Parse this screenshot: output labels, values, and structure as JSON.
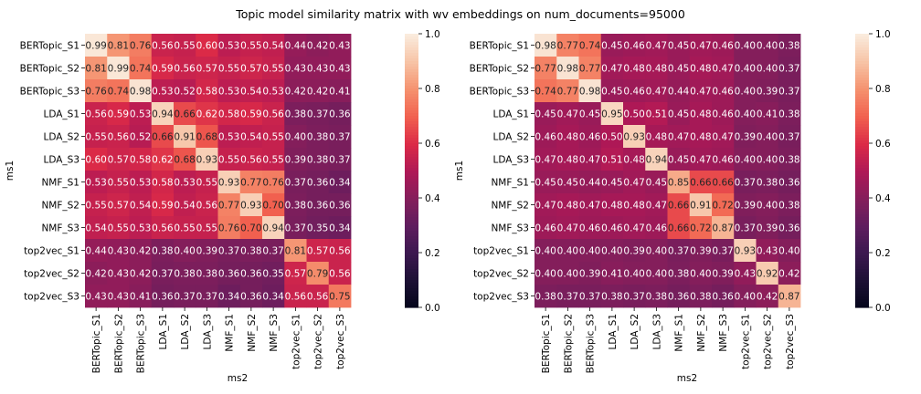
{
  "title": "Topic model similarity matrix with wv embeddings on  num_documents=95000",
  "chart_data": {
    "type": "heatmap",
    "colormap": "rocket",
    "vmin": 0,
    "vmax": 1,
    "colorbar_ticks": [
      "0.0",
      "0.2",
      "0.4",
      "0.6",
      "0.8",
      "1.0"
    ],
    "labels": [
      "BERTopic_S1",
      "BERTopic_S2",
      "BERTopic_S3",
      "LDA_S1",
      "LDA_S2",
      "LDA_S3",
      "NMF_S1",
      "NMF_S2",
      "NMF_S3",
      "top2vec_S1",
      "top2vec_S2",
      "top2vec_S3"
    ],
    "panels": [
      {
        "xlabel": "ms2",
        "ylabel": "ms1",
        "values": [
          [
            0.99,
            0.81,
            0.76,
            0.56,
            0.55,
            0.6,
            0.53,
            0.55,
            0.54,
            0.44,
            0.42,
            0.43
          ],
          [
            0.81,
            0.99,
            0.74,
            0.59,
            0.56,
            0.57,
            0.55,
            0.57,
            0.55,
            0.43,
            0.43,
            0.43
          ],
          [
            0.76,
            0.74,
            0.98,
            0.53,
            0.52,
            0.58,
            0.53,
            0.54,
            0.53,
            0.42,
            0.42,
            0.41
          ],
          [
            0.56,
            0.59,
            0.53,
            0.94,
            0.66,
            0.62,
            0.58,
            0.59,
            0.56,
            0.38,
            0.37,
            0.36
          ],
          [
            0.55,
            0.56,
            0.52,
            0.66,
            0.91,
            0.68,
            0.53,
            0.54,
            0.55,
            0.4,
            0.38,
            0.37
          ],
          [
            0.6,
            0.57,
            0.58,
            0.62,
            0.68,
            0.93,
            0.55,
            0.56,
            0.55,
            0.39,
            0.38,
            0.37
          ],
          [
            0.53,
            0.55,
            0.53,
            0.58,
            0.53,
            0.55,
            0.93,
            0.77,
            0.76,
            0.37,
            0.36,
            0.34
          ],
          [
            0.55,
            0.57,
            0.54,
            0.59,
            0.54,
            0.56,
            0.77,
            0.93,
            0.7,
            0.38,
            0.36,
            0.36
          ],
          [
            0.54,
            0.55,
            0.53,
            0.56,
            0.55,
            0.55,
            0.76,
            0.7,
            0.94,
            0.37,
            0.35,
            0.34
          ],
          [
            0.44,
            0.43,
            0.42,
            0.38,
            0.4,
            0.39,
            0.37,
            0.38,
            0.37,
            0.81,
            0.57,
            0.56
          ],
          [
            0.42,
            0.43,
            0.42,
            0.37,
            0.38,
            0.38,
            0.36,
            0.36,
            0.35,
            0.57,
            0.79,
            0.56
          ],
          [
            0.43,
            0.43,
            0.41,
            0.36,
            0.37,
            0.37,
            0.34,
            0.36,
            0.34,
            0.56,
            0.56,
            0.75
          ]
        ]
      },
      {
        "xlabel": "ms2",
        "ylabel": "ms1",
        "values": [
          [
            0.98,
            0.77,
            0.74,
            0.45,
            0.46,
            0.47,
            0.45,
            0.47,
            0.46,
            0.4,
            0.4,
            0.38
          ],
          [
            0.77,
            0.98,
            0.77,
            0.47,
            0.48,
            0.48,
            0.45,
            0.48,
            0.47,
            0.4,
            0.4,
            0.37
          ],
          [
            0.74,
            0.77,
            0.98,
            0.45,
            0.46,
            0.47,
            0.44,
            0.47,
            0.46,
            0.4,
            0.39,
            0.37
          ],
          [
            0.45,
            0.47,
            0.45,
            0.95,
            0.5,
            0.51,
            0.45,
            0.48,
            0.46,
            0.4,
            0.41,
            0.38
          ],
          [
            0.46,
            0.48,
            0.46,
            0.5,
            0.93,
            0.48,
            0.47,
            0.48,
            0.47,
            0.39,
            0.4,
            0.37
          ],
          [
            0.47,
            0.48,
            0.47,
            0.51,
            0.48,
            0.94,
            0.45,
            0.47,
            0.46,
            0.4,
            0.4,
            0.38
          ],
          [
            0.45,
            0.45,
            0.44,
            0.45,
            0.47,
            0.45,
            0.85,
            0.66,
            0.66,
            0.37,
            0.38,
            0.36
          ],
          [
            0.47,
            0.48,
            0.47,
            0.48,
            0.48,
            0.47,
            0.66,
            0.91,
            0.72,
            0.39,
            0.4,
            0.38
          ],
          [
            0.46,
            0.47,
            0.46,
            0.46,
            0.47,
            0.46,
            0.66,
            0.72,
            0.87,
            0.37,
            0.39,
            0.36
          ],
          [
            0.4,
            0.4,
            0.4,
            0.4,
            0.39,
            0.4,
            0.37,
            0.39,
            0.37,
            0.93,
            0.43,
            0.4
          ],
          [
            0.4,
            0.4,
            0.39,
            0.41,
            0.4,
            0.4,
            0.38,
            0.4,
            0.39,
            0.43,
            0.92,
            0.42
          ],
          [
            0.38,
            0.37,
            0.37,
            0.38,
            0.37,
            0.38,
            0.36,
            0.38,
            0.36,
            0.4,
            0.42,
            0.87
          ]
        ]
      }
    ]
  }
}
